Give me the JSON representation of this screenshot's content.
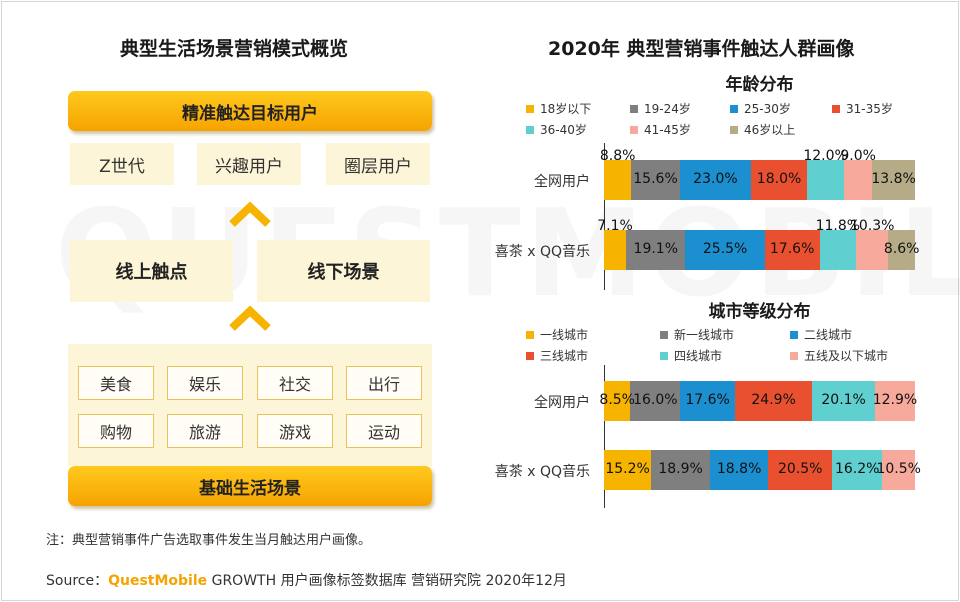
{
  "watermark": "QUESTMOBILE",
  "left_panel": {
    "title": "典型生活场景营销模式概览",
    "top_bar": "精准触达目标用户",
    "segments": [
      "Z世代",
      "兴趣用户",
      "圈层用户"
    ],
    "online": "线上触点",
    "offline": "线下场景",
    "scenes": [
      "美食",
      "娱乐",
      "社交",
      "出行",
      "购物",
      "旅游",
      "游戏",
      "运动"
    ],
    "bottom_bar": "基础生活场景"
  },
  "right_panel": {
    "title": "2020年 典型营销事件触达人群画像"
  },
  "note": "注：典型营销事件广告选取事件发生当月触达用户画像。",
  "source": {
    "prefix": "Source：",
    "brand": "QuestMobile",
    "text": " GROWTH 用户画像标签数据库 营销研究院 2020年12月"
  },
  "chart_data": [
    {
      "type": "bar",
      "orientation": "horizontal",
      "stacked": true,
      "normalized": true,
      "title": "年龄分布",
      "categories": [
        "全网用户",
        "喜茶 x QQ音乐"
      ],
      "series": [
        {
          "name": "18岁以下",
          "color": "#f6b300",
          "values": [
            8.8,
            7.1
          ]
        },
        {
          "name": "19-24岁",
          "color": "#7f7f7f",
          "values": [
            15.6,
            19.1
          ]
        },
        {
          "name": "25-30岁",
          "color": "#1b8fd0",
          "values": [
            23.0,
            25.5
          ]
        },
        {
          "name": "31-35岁",
          "color": "#e9502f",
          "values": [
            18.0,
            17.6
          ]
        },
        {
          "name": "36-40岁",
          "color": "#5fcfcf",
          "values": [
            12.0,
            11.8
          ]
        },
        {
          "name": "41-45岁",
          "color": "#f7a99b",
          "values": [
            9.0,
            10.3
          ]
        },
        {
          "name": "46岁以上",
          "color": "#b5ab86",
          "values": [
            13.8,
            8.6
          ]
        }
      ],
      "value_suffix": "%"
    },
    {
      "type": "bar",
      "orientation": "horizontal",
      "stacked": true,
      "normalized": true,
      "title": "城市等级分布",
      "categories": [
        "全网用户",
        "喜茶 x QQ音乐"
      ],
      "series": [
        {
          "name": "一线城市",
          "color": "#f6b300",
          "values": [
            8.5,
            15.2
          ]
        },
        {
          "name": "新一线城市",
          "color": "#7f7f7f",
          "values": [
            16.0,
            18.9
          ]
        },
        {
          "name": "二线城市",
          "color": "#1b8fd0",
          "values": [
            17.6,
            18.8
          ]
        },
        {
          "name": "三线城市",
          "color": "#e9502f",
          "values": [
            24.9,
            20.5
          ]
        },
        {
          "name": "四线城市",
          "color": "#5fcfcf",
          "values": [
            20.1,
            16.2
          ]
        },
        {
          "name": "五线及以下城市",
          "color": "#f7a99b",
          "values": [
            12.9,
            10.5
          ]
        }
      ],
      "value_suffix": "%"
    }
  ]
}
